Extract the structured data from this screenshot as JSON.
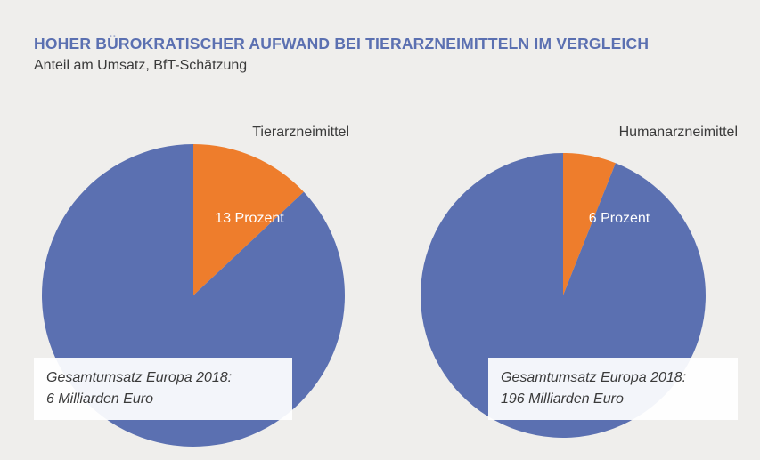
{
  "title": "HOHER BÜROKRATISCHER AUFWAND BEI TIERARZNEIMITTELN IM VERGLEICH",
  "subtitle": "Anteil am Umsatz, BfT-Schätzung",
  "colors": {
    "title": "#5b70b1",
    "main": "#5b70b1",
    "highlight": "#ee7d2c",
    "label_box": "#ffffff",
    "text": "#3a3a3a",
    "slice_label": "#ffffff"
  },
  "chart_data": [
    {
      "type": "pie",
      "title": "Tierarzneimittel",
      "slices": [
        {
          "value": 13,
          "label": "13 Prozent",
          "color": "#ee7d2c"
        },
        {
          "value": 87,
          "label": "",
          "color": "#5b70b1"
        }
      ],
      "annotation": [
        "Gesamtumsatz Europa 2018:",
        "6 Milliarden Euro"
      ]
    },
    {
      "type": "pie",
      "title": "Humanarzneimittel",
      "slices": [
        {
          "value": 6,
          "label": "6 Prozent",
          "color": "#ee7d2c"
        },
        {
          "value": 94,
          "label": "",
          "color": "#5b70b1"
        }
      ],
      "annotation": [
        "Gesamtumsatz Europa 2018:",
        "196 Milliarden Euro"
      ]
    }
  ]
}
